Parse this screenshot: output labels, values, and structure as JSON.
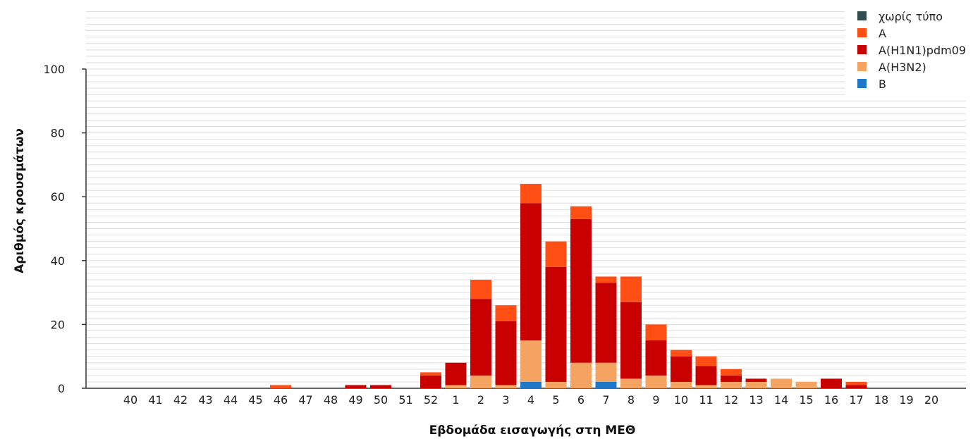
{
  "chart_data": {
    "type": "bar",
    "stacked": true,
    "title": "",
    "xlabel": "Εβδομάδα εισαγωγής στη ΜΕΘ",
    "ylabel": "Αριθμός κρουσμάτων",
    "ylim": [
      0,
      100
    ],
    "yticks": [
      0,
      20,
      40,
      60,
      80,
      100
    ],
    "grid": true,
    "legend_position": "top-right",
    "categories": [
      "40",
      "41",
      "42",
      "43",
      "44",
      "45",
      "46",
      "47",
      "48",
      "49",
      "50",
      "51",
      "52",
      "1",
      "2",
      "3",
      "4",
      "5",
      "6",
      "7",
      "8",
      "9",
      "10",
      "11",
      "12",
      "13",
      "14",
      "15",
      "16",
      "17",
      "18",
      "19",
      "20"
    ],
    "series": [
      {
        "name": "B",
        "color": "#1f77c8",
        "values": [
          0,
          0,
          0,
          0,
          0,
          0,
          0,
          0,
          0,
          0,
          0,
          0,
          0,
          0,
          0,
          0,
          2,
          0,
          0,
          2,
          0,
          0,
          0,
          0,
          0,
          0,
          0,
          0,
          0,
          0,
          0,
          0,
          0
        ]
      },
      {
        "name": "A(H3N2)",
        "color": "#f4a460",
        "values": [
          0,
          0,
          0,
          0,
          0,
          0,
          0,
          0,
          0,
          0,
          0,
          0,
          0,
          1,
          4,
          1,
          13,
          2,
          8,
          6,
          3,
          4,
          2,
          1,
          2,
          2,
          3,
          2,
          0,
          0,
          0,
          0,
          0
        ]
      },
      {
        "name": "A(H1N1)pdm09",
        "color": "#c80000",
        "values": [
          0,
          0,
          0,
          0,
          0,
          0,
          0,
          0,
          0,
          1,
          1,
          0,
          4,
          7,
          24,
          20,
          43,
          36,
          45,
          25,
          24,
          11,
          8,
          6,
          2,
          1,
          0,
          0,
          3,
          1,
          0,
          0,
          0
        ]
      },
      {
        "name": "A",
        "color": "#ff4f14",
        "values": [
          0,
          0,
          0,
          0,
          0,
          0,
          1,
          0,
          0,
          0,
          0,
          0,
          1,
          0,
          6,
          5,
          6,
          8,
          4,
          2,
          8,
          5,
          2,
          3,
          2,
          0,
          0,
          0,
          0,
          1,
          0,
          0,
          0
        ]
      },
      {
        "name": "χωρίς τύπο",
        "color": "#2f4f4f",
        "values": [
          0,
          0,
          0,
          0,
          0,
          0,
          0,
          0,
          0,
          0,
          0,
          0,
          0,
          0,
          0,
          0,
          0,
          0,
          0,
          0,
          0,
          0,
          0,
          0,
          0,
          0,
          0,
          0,
          0,
          0,
          0,
          0,
          0
        ]
      }
    ],
    "legend_order": [
      "χωρίς τύπο",
      "A",
      "A(H1N1)pdm09",
      "A(H3N2)",
      "B"
    ]
  }
}
